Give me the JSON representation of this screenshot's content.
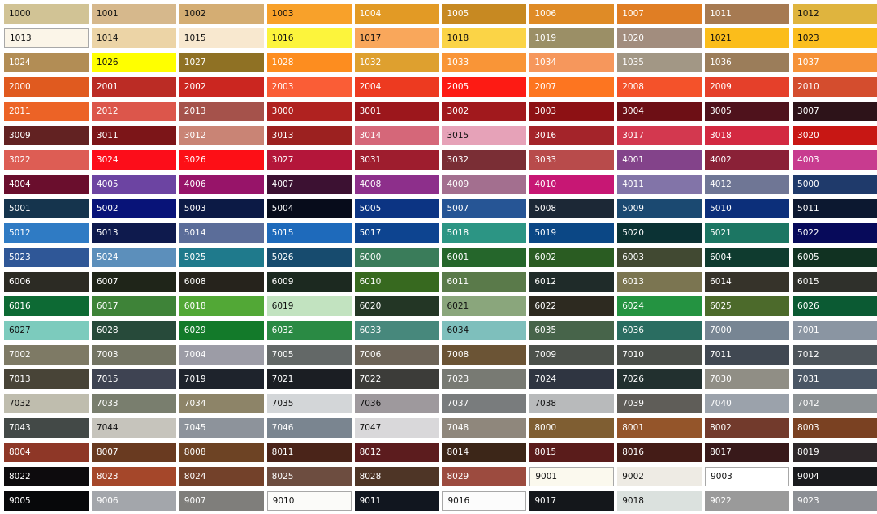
{
  "swatches": [
    {
      "code": "1000",
      "color": "#d1c395",
      "dark": true
    },
    {
      "code": "1001",
      "color": "#d6b88c",
      "dark": true
    },
    {
      "code": "1002",
      "color": "#d4ad73",
      "dark": true
    },
    {
      "code": "1003",
      "color": "#f8a12a",
      "dark": true
    },
    {
      "code": "1004",
      "color": "#e29a25"
    },
    {
      "code": "1005",
      "color": "#c78922"
    },
    {
      "code": "1006",
      "color": "#df8b26"
    },
    {
      "code": "1007",
      "color": "#e07e24"
    },
    {
      "code": "1011",
      "color": "#a67a52"
    },
    {
      "code": "1012",
      "color": "#dfb43e",
      "dark": true
    },
    {
      "code": "1013",
      "color": "#fbf5e8",
      "dark": true,
      "outlined": true
    },
    {
      "code": "1014",
      "color": "#ecd4a6",
      "dark": true
    },
    {
      "code": "1015",
      "color": "#f8e8cf",
      "dark": true
    },
    {
      "code": "1016",
      "color": "#fcf43c",
      "dark": true
    },
    {
      "code": "1017",
      "color": "#f9a75b",
      "dark": true
    },
    {
      "code": "1018",
      "color": "#fbd446",
      "dark": true
    },
    {
      "code": "1019",
      "color": "#9b8f66"
    },
    {
      "code": "1020",
      "color": "#a28d7e"
    },
    {
      "code": "1021",
      "color": "#fbbd1b",
      "dark": true
    },
    {
      "code": "1023",
      "color": "#fbbe1f",
      "dark": true
    },
    {
      "code": "1024",
      "color": "#b28d55"
    },
    {
      "code": "1026",
      "color": "#ffff00",
      "dark": true
    },
    {
      "code": "1027",
      "color": "#8f7124"
    },
    {
      "code": "1028",
      "color": "#fd8d1f"
    },
    {
      "code": "1032",
      "color": "#dea02f"
    },
    {
      "code": "1033",
      "color": "#f99537"
    },
    {
      "code": "1034",
      "color": "#f6975c"
    },
    {
      "code": "1035",
      "color": "#a29785"
    },
    {
      "code": "1036",
      "color": "#9b7d5a"
    },
    {
      "code": "1037",
      "color": "#f69238"
    },
    {
      "code": "2000",
      "color": "#e05a1f"
    },
    {
      "code": "2001",
      "color": "#bb2c25"
    },
    {
      "code": "2002",
      "color": "#cb2620"
    },
    {
      "code": "2003",
      "color": "#fa5d36"
    },
    {
      "code": "2004",
      "color": "#ed3a20"
    },
    {
      "code": "2005",
      "color": "#fd1b14"
    },
    {
      "code": "2007",
      "color": "#fd7520"
    },
    {
      "code": "2008",
      "color": "#f4522a"
    },
    {
      "code": "2009",
      "color": "#e5402a"
    },
    {
      "code": "2010",
      "color": "#d44d2e"
    },
    {
      "code": "2011",
      "color": "#ec6326"
    },
    {
      "code": "2012",
      "color": "#dc564b"
    },
    {
      "code": "2013",
      "color": "#a5524b"
    },
    {
      "code": "3000",
      "color": "#b02220"
    },
    {
      "code": "3001",
      "color": "#9c171c"
    },
    {
      "code": "3002",
      "color": "#a1191d"
    },
    {
      "code": "3003",
      "color": "#8d1114"
    },
    {
      "code": "3004",
      "color": "#6d0f15"
    },
    {
      "code": "3005",
      "color": "#4f121c"
    },
    {
      "code": "3007",
      "color": "#2d1319"
    },
    {
      "code": "3009",
      "color": "#622222"
    },
    {
      "code": "3011",
      "color": "#7c1518"
    },
    {
      "code": "3012",
      "color": "#c98475"
    },
    {
      "code": "3013",
      "color": "#9c2120"
    },
    {
      "code": "3014",
      "color": "#d56779"
    },
    {
      "code": "3015",
      "color": "#e6a2b8",
      "dark": true
    },
    {
      "code": "3016",
      "color": "#a4242a"
    },
    {
      "code": "3017",
      "color": "#d3384f"
    },
    {
      "code": "3018",
      "color": "#d32941"
    },
    {
      "code": "3020",
      "color": "#c81714"
    },
    {
      "code": "3022",
      "color": "#dd5d54"
    },
    {
      "code": "3024",
      "color": "#fc0d1a"
    },
    {
      "code": "3026",
      "color": "#fd0f16"
    },
    {
      "code": "3027",
      "color": "#b4163a"
    },
    {
      "code": "3031",
      "color": "#9e1d2e"
    },
    {
      "code": "3032",
      "color": "#7a2e35"
    },
    {
      "code": "3033",
      "color": "#b84b4b"
    },
    {
      "code": "4001",
      "color": "#83438a"
    },
    {
      "code": "4002",
      "color": "#8a2137"
    },
    {
      "code": "4003",
      "color": "#c83b8f"
    },
    {
      "code": "4004",
      "color": "#6a0e2d"
    },
    {
      "code": "4005",
      "color": "#6c44a2"
    },
    {
      "code": "4006",
      "color": "#971469"
    },
    {
      "code": "4007",
      "color": "#3c1132"
    },
    {
      "code": "4008",
      "color": "#8d2f8b"
    },
    {
      "code": "4009",
      "color": "#a36f8f"
    },
    {
      "code": "4010",
      "color": "#c71774"
    },
    {
      "code": "4011",
      "color": "#8274a8"
    },
    {
      "code": "4012",
      "color": "#6f7695"
    },
    {
      "code": "5000",
      "color": "#1f3a6b"
    },
    {
      "code": "5001",
      "color": "#15344d"
    },
    {
      "code": "5002",
      "color": "#081378"
    },
    {
      "code": "5003",
      "color": "#0c1a45"
    },
    {
      "code": "5004",
      "color": "#070c1b"
    },
    {
      "code": "5005",
      "color": "#0c3483"
    },
    {
      "code": "5007",
      "color": "#265595"
    },
    {
      "code": "5008",
      "color": "#1c2836"
    },
    {
      "code": "5009",
      "color": "#1b4971"
    },
    {
      "code": "5010",
      "color": "#0c2f7a"
    },
    {
      "code": "5011",
      "color": "#0c1830"
    },
    {
      "code": "5012",
      "color": "#2f7bc4"
    },
    {
      "code": "5013",
      "color": "#0e1a4d"
    },
    {
      "code": "5014",
      "color": "#5b6d99"
    },
    {
      "code": "5015",
      "color": "#1e6abb"
    },
    {
      "code": "5017",
      "color": "#0d4490"
    },
    {
      "code": "5018",
      "color": "#2c9584"
    },
    {
      "code": "5019",
      "color": "#0b4785"
    },
    {
      "code": "5020",
      "color": "#0b3234"
    },
    {
      "code": "5021",
      "color": "#1c7663"
    },
    {
      "code": "5022",
      "color": "#070a5a"
    },
    {
      "code": "5023",
      "color": "#2f5797"
    },
    {
      "code": "5024",
      "color": "#5c8fbb"
    },
    {
      "code": "5025",
      "color": "#1f7a8c"
    },
    {
      "code": "5026",
      "color": "#174b6e"
    },
    {
      "code": "6000",
      "color": "#3a7c5a"
    },
    {
      "code": "6001",
      "color": "#25662b"
    },
    {
      "code": "6002",
      "color": "#2a5c22"
    },
    {
      "code": "6003",
      "color": "#414932"
    },
    {
      "code": "6004",
      "color": "#0f3b2f"
    },
    {
      "code": "6005",
      "color": "#113222"
    },
    {
      "code": "6006",
      "color": "#2c2b24"
    },
    {
      "code": "6007",
      "color": "#1f2519"
    },
    {
      "code": "6008",
      "color": "#26231c"
    },
    {
      "code": "6009",
      "color": "#1c2920"
    },
    {
      "code": "6010",
      "color": "#37691f"
    },
    {
      "code": "6011",
      "color": "#5a7a4a"
    },
    {
      "code": "6012",
      "color": "#1f2b29"
    },
    {
      "code": "6013",
      "color": "#7b7551"
    },
    {
      "code": "6014",
      "color": "#36332a"
    },
    {
      "code": "6015",
      "color": "#2f302b"
    },
    {
      "code": "6016",
      "color": "#0d6a34"
    },
    {
      "code": "6017",
      "color": "#3e8338"
    },
    {
      "code": "6018",
      "color": "#52a836"
    },
    {
      "code": "6019",
      "color": "#c2e3c0",
      "dark": true
    },
    {
      "code": "6020",
      "color": "#233625"
    },
    {
      "code": "6021",
      "color": "#8aa67c",
      "dark": true
    },
    {
      "code": "6022",
      "color": "#2d2a20"
    },
    {
      "code": "6024",
      "color": "#249341"
    },
    {
      "code": "6025",
      "color": "#4c6a2b"
    },
    {
      "code": "6026",
      "color": "#0b5a33"
    },
    {
      "code": "6027",
      "color": "#7ccbbd",
      "dark": true
    },
    {
      "code": "6028",
      "color": "#274a3a"
    },
    {
      "code": "6029",
      "color": "#137a2a"
    },
    {
      "code": "6032",
      "color": "#2a8a44"
    },
    {
      "code": "6033",
      "color": "#47887c"
    },
    {
      "code": "6034",
      "color": "#7ebfbc",
      "dark": true
    },
    {
      "code": "6035",
      "color": "#47644a"
    },
    {
      "code": "6036",
      "color": "#2a6d61"
    },
    {
      "code": "7000",
      "color": "#778593"
    },
    {
      "code": "7001",
      "color": "#8a95a2"
    },
    {
      "code": "7002",
      "color": "#7e7a65"
    },
    {
      "code": "7003",
      "color": "#737463"
    },
    {
      "code": "7004",
      "color": "#9c9ca6"
    },
    {
      "code": "7005",
      "color": "#636867"
    },
    {
      "code": "7006",
      "color": "#6d6458"
    },
    {
      "code": "7008",
      "color": "#6b5435"
    },
    {
      "code": "7009",
      "color": "#4c514b"
    },
    {
      "code": "7010",
      "color": "#4b4f4a"
    },
    {
      "code": "7011",
      "color": "#404852"
    },
    {
      "code": "7012",
      "color": "#4e555b"
    },
    {
      "code": "7013",
      "color": "#484437"
    },
    {
      "code": "7015",
      "color": "#3e4352"
    },
    {
      "code": "7019",
      "color": "#1e232c"
    },
    {
      "code": "7021",
      "color": "#1b1e23"
    },
    {
      "code": "7022",
      "color": "#3c3c39"
    },
    {
      "code": "7023",
      "color": "#787a73"
    },
    {
      "code": "7024",
      "color": "#2f3541"
    },
    {
      "code": "7026",
      "color": "#22302f"
    },
    {
      "code": "7030",
      "color": "#908e85"
    },
    {
      "code": "7031",
      "color": "#4a5665"
    },
    {
      "code": "7032",
      "color": "#bfbdae",
      "dark": true
    },
    {
      "code": "7033",
      "color": "#797e6e"
    },
    {
      "code": "7034",
      "color": "#8d8468"
    },
    {
      "code": "7035",
      "color": "#d3d6d8",
      "dark": true
    },
    {
      "code": "7036",
      "color": "#9e999d",
      "dark": true
    },
    {
      "code": "7037",
      "color": "#797c7d"
    },
    {
      "code": "7038",
      "color": "#b8babb",
      "dark": true
    },
    {
      "code": "7039",
      "color": "#5f5d58"
    },
    {
      "code": "7040",
      "color": "#9ba2ab"
    },
    {
      "code": "7042",
      "color": "#8d9295"
    },
    {
      "code": "7043",
      "color": "#434947"
    },
    {
      "code": "7044",
      "color": "#c6c4bc",
      "dark": true
    },
    {
      "code": "7045",
      "color": "#8d939b"
    },
    {
      "code": "7046",
      "color": "#7a8590"
    },
    {
      "code": "7047",
      "color": "#d9d8da",
      "dark": true
    },
    {
      "code": "7048",
      "color": "#8f877c"
    },
    {
      "code": "8000",
      "color": "#7f5e32"
    },
    {
      "code": "8001",
      "color": "#94552a"
    },
    {
      "code": "8002",
      "color": "#723a2c"
    },
    {
      "code": "8003",
      "color": "#7a4122"
    },
    {
      "code": "8004",
      "color": "#8e3727"
    },
    {
      "code": "8007",
      "color": "#693a20"
    },
    {
      "code": "8008",
      "color": "#6d4324"
    },
    {
      "code": "8011",
      "color": "#4a2419"
    },
    {
      "code": "8012",
      "color": "#5c1c1e"
    },
    {
      "code": "8014",
      "color": "#3c2618"
    },
    {
      "code": "8015",
      "color": "#5a1c1b"
    },
    {
      "code": "8016",
      "color": "#441c17"
    },
    {
      "code": "8017",
      "color": "#38191a"
    },
    {
      "code": "8019",
      "color": "#2e282a"
    },
    {
      "code": "8022",
      "color": "#0d0b0d"
    },
    {
      "code": "8023",
      "color": "#a5472a"
    },
    {
      "code": "8024",
      "color": "#73412a"
    },
    {
      "code": "8025",
      "color": "#6d4d40"
    },
    {
      "code": "8028",
      "color": "#4e3526"
    },
    {
      "code": "8029",
      "color": "#9c4b3f"
    },
    {
      "code": "9001",
      "color": "#fbf9ee",
      "dark": true,
      "outlined": true
    },
    {
      "code": "9002",
      "color": "#eeebe4",
      "dark": true
    },
    {
      "code": "9003",
      "color": "#ffffff",
      "dark": true,
      "outlined": true
    },
    {
      "code": "9004",
      "color": "#1a1b1e"
    },
    {
      "code": "9005",
      "color": "#07080a"
    },
    {
      "code": "9006",
      "color": "#a3a6ab"
    },
    {
      "code": "9007",
      "color": "#7f7e7b"
    },
    {
      "code": "9010",
      "color": "#fbfbf9",
      "dark": true,
      "outlined": true
    },
    {
      "code": "9011",
      "color": "#11161f"
    },
    {
      "code": "9016",
      "color": "#fcfcfc",
      "dark": true,
      "outlined": true
    },
    {
      "code": "9017",
      "color": "#14171b"
    },
    {
      "code": "9018",
      "color": "#dbe1de",
      "dark": true
    },
    {
      "code": "9022",
      "color": "#9a9a9a"
    },
    {
      "code": "9023",
      "color": "#8c8f94"
    }
  ]
}
